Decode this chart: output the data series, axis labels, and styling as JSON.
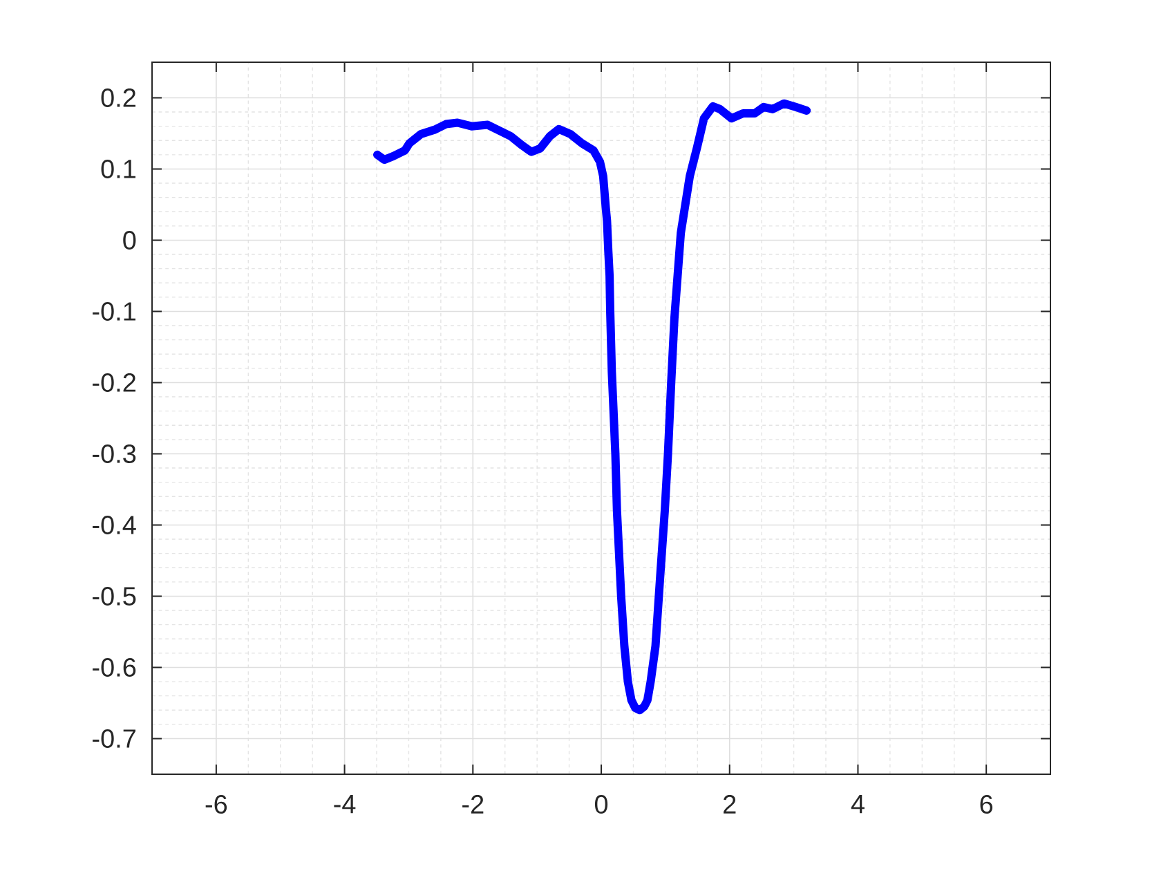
{
  "chart_data": {
    "type": "line",
    "x": [
      -3.49,
      -3.38,
      -3.24,
      -3.06,
      -2.99,
      -2.81,
      -2.6,
      -2.42,
      -2.24,
      -2.02,
      -1.77,
      -1.59,
      -1.41,
      -1.23,
      -1.09,
      -0.95,
      -0.8,
      -0.66,
      -0.48,
      -0.3,
      -0.12,
      -0.02,
      0.03,
      0.07,
      0.09,
      0.11,
      0.13,
      0.14,
      0.165,
      0.22,
      0.245,
      0.31,
      0.36,
      0.415,
      0.47,
      0.53,
      0.6,
      0.67,
      0.72,
      0.77,
      0.845,
      0.92,
      0.99,
      1.04,
      1.09,
      1.14,
      1.19,
      1.24,
      1.38,
      1.49,
      1.6,
      1.74,
      1.85,
      2.03,
      2.21,
      2.39,
      2.53,
      2.67,
      2.85,
      3.03,
      3.2
    ],
    "values": [
      0.12,
      0.113,
      0.118,
      0.126,
      0.136,
      0.149,
      0.155,
      0.163,
      0.165,
      0.16,
      0.162,
      0.154,
      0.146,
      0.133,
      0.124,
      0.129,
      0.146,
      0.156,
      0.149,
      0.136,
      0.126,
      0.11,
      0.09,
      0.046,
      0.027,
      -0.015,
      -0.05,
      -0.1,
      -0.185,
      -0.3,
      -0.38,
      -0.5,
      -0.57,
      -0.62,
      -0.646,
      -0.657,
      -0.66,
      -0.655,
      -0.646,
      -0.62,
      -0.57,
      -0.47,
      -0.38,
      -0.3,
      -0.2,
      -0.11,
      -0.05,
      0.01,
      0.09,
      0.129,
      0.171,
      0.188,
      0.184,
      0.171,
      0.178,
      0.178,
      0.187,
      0.184,
      0.192,
      0.187,
      0.182
    ],
    "color": "#0000ff",
    "line_style": "solid",
    "xlim": [
      -7,
      7
    ],
    "ylim": [
      -0.75,
      0.25
    ],
    "xticks": [
      -6,
      -4,
      -2,
      0,
      2,
      4,
      6
    ],
    "yticks": [
      -0.7,
      -0.6,
      -0.5,
      -0.4,
      -0.3,
      -0.2,
      -0.1,
      0,
      0.1,
      0.2
    ],
    "grid": true
  }
}
